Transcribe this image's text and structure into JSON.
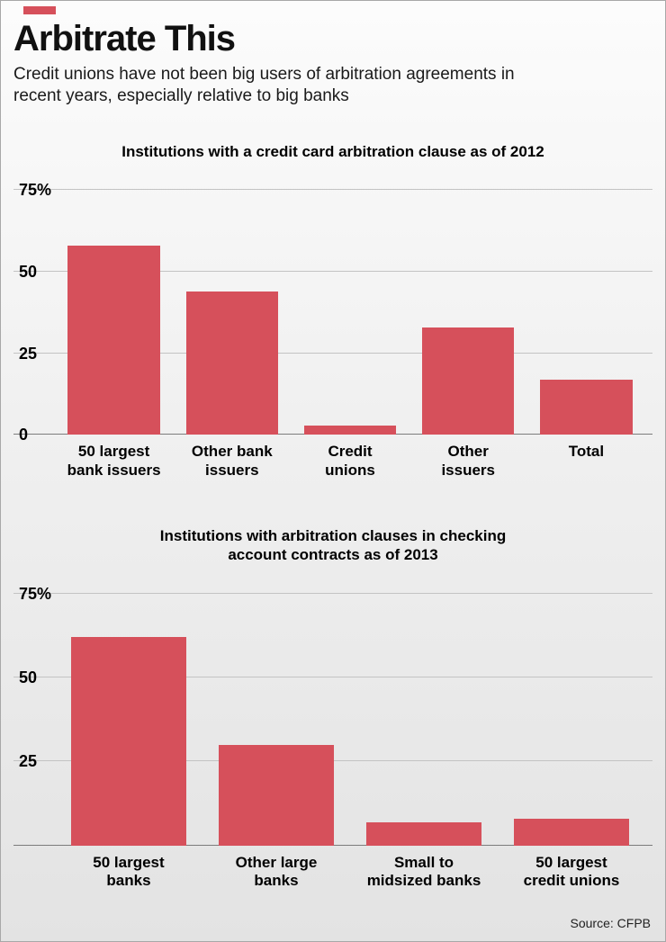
{
  "page": {
    "title": "Arbitrate This",
    "subtitle": "Credit unions have not been big users of arbitration agreements in\nrecent years, especially relative to big banks",
    "source": "Source: CFPB",
    "accent_color": "#d6505b"
  },
  "chart_data": [
    {
      "type": "bar",
      "title": "Institutions with a credit card arbitration clause as of 2012",
      "categories": [
        "50 largest\nbank issuers",
        "Other bank\nissuers",
        "Credit\nunions",
        "Other\nissuers",
        "Total"
      ],
      "values": [
        58,
        44,
        3,
        33,
        17
      ],
      "ylim": [
        0,
        75
      ],
      "ticks": [
        {
          "label": "75%",
          "value": 75
        },
        {
          "label": "50",
          "value": 50
        },
        {
          "label": "25",
          "value": 25
        },
        {
          "label": "0",
          "value": 0
        }
      ],
      "bar_color": "#d6505b",
      "grid": true,
      "legend": "none",
      "xlabel": "",
      "ylabel": ""
    },
    {
      "type": "bar",
      "title": "Institutions with arbitration clauses in checking\naccount contracts as of 2013",
      "categories": [
        "50 largest\nbanks",
        "Other large\nbanks",
        "Small to\nmidsized banks",
        "50 largest\ncredit unions"
      ],
      "values": [
        62,
        30,
        7,
        8
      ],
      "ylim": [
        0,
        75
      ],
      "ticks": [
        {
          "label": "75%",
          "value": 75
        },
        {
          "label": "50",
          "value": 50
        },
        {
          "label": "25",
          "value": 25
        },
        {
          "label": "",
          "value": 0
        }
      ],
      "bar_color": "#d6505b",
      "grid": true,
      "legend": "none",
      "xlabel": "",
      "ylabel": ""
    }
  ]
}
